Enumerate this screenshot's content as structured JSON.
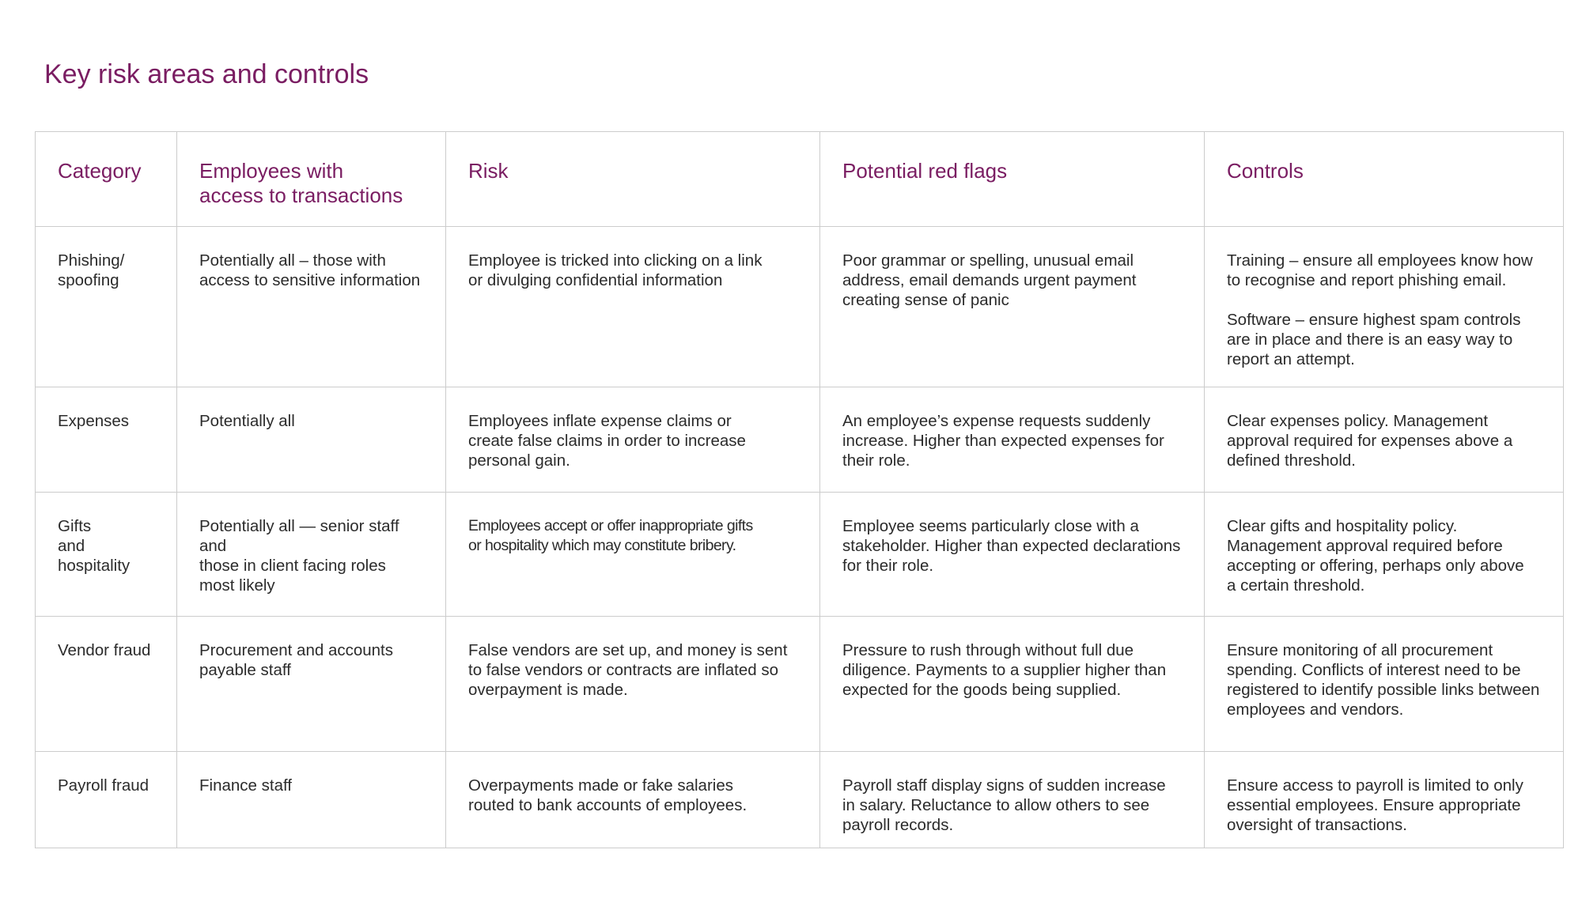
{
  "page": {
    "title": "Key risk areas and controls"
  },
  "table": {
    "headers": [
      "Category",
      "Employees with\naccess to transactions",
      "Risk",
      "Potential red flags",
      "Controls"
    ],
    "rows": [
      {
        "category": "Phishing/\nspoofing",
        "employees": "Potentially all – those with\naccess to sensitive information",
        "risk": "Employee is tricked into clicking on a link\nor divulging confidential information",
        "red_flags": "Poor grammar or spelling, unusual email\naddress, email demands urgent payment\ncreating sense of panic",
        "controls": "Training – ensure all employees know how\nto recognise and report phishing email.",
        "controls_extra": "Software – ensure highest spam controls\nare in place and there is an easy way to\nreport an attempt."
      },
      {
        "category": "Expenses",
        "employees": "Potentially all",
        "risk": "Employees inflate expense claims or\ncreate false claims in order to increase\npersonal gain.",
        "red_flags": "An employee’s expense requests suddenly\nincrease. Higher than expected expenses for\ntheir role.",
        "controls": "Clear expenses policy. Management\napproval required for expenses above a\ndefined threshold."
      },
      {
        "category": "Gifts\nand hospitality",
        "employees": "Potentially all — senior staff and\nthose in client facing roles\nmost likely",
        "risk": "Employees accept or offer inappropriate gifts\nor hospitality which may constitute bribery.",
        "red_flags": "Employee seems particularly close with a\nstakeholder. Higher than expected declarations\nfor their role.",
        "controls": "Clear gifts and hospitality policy.\nManagement approval required before\naccepting or offering, perhaps only above\na certain threshold."
      },
      {
        "category": "Vendor fraud",
        "employees": "Procurement and accounts\npayable staff",
        "risk": "False vendors are set up, and money is sent\nto false vendors or contracts are inflated so\noverpayment is made.",
        "red_flags": "Pressure to rush through without full due\ndiligence. Payments to a supplier higher than\nexpected for the goods being supplied.",
        "controls": "Ensure monitoring of all procurement\nspending. Conflicts of interest need to be\nregistered to identify possible links between\nemployees and vendors."
      },
      {
        "category": "Payroll fraud",
        "employees": "Finance staff",
        "risk": "Overpayments made or fake salaries\nrouted to bank accounts of employees.",
        "red_flags": "Payroll staff display signs of sudden increase\nin salary. Reluctance to allow others to see\npayroll records.",
        "controls": "Ensure access to payroll is limited to only\nessential employees. Ensure appropriate\noversight of transactions."
      }
    ]
  },
  "colors": {
    "accent": "#7a1d62",
    "text": "#2b2b2b",
    "border": "#cccccc"
  }
}
